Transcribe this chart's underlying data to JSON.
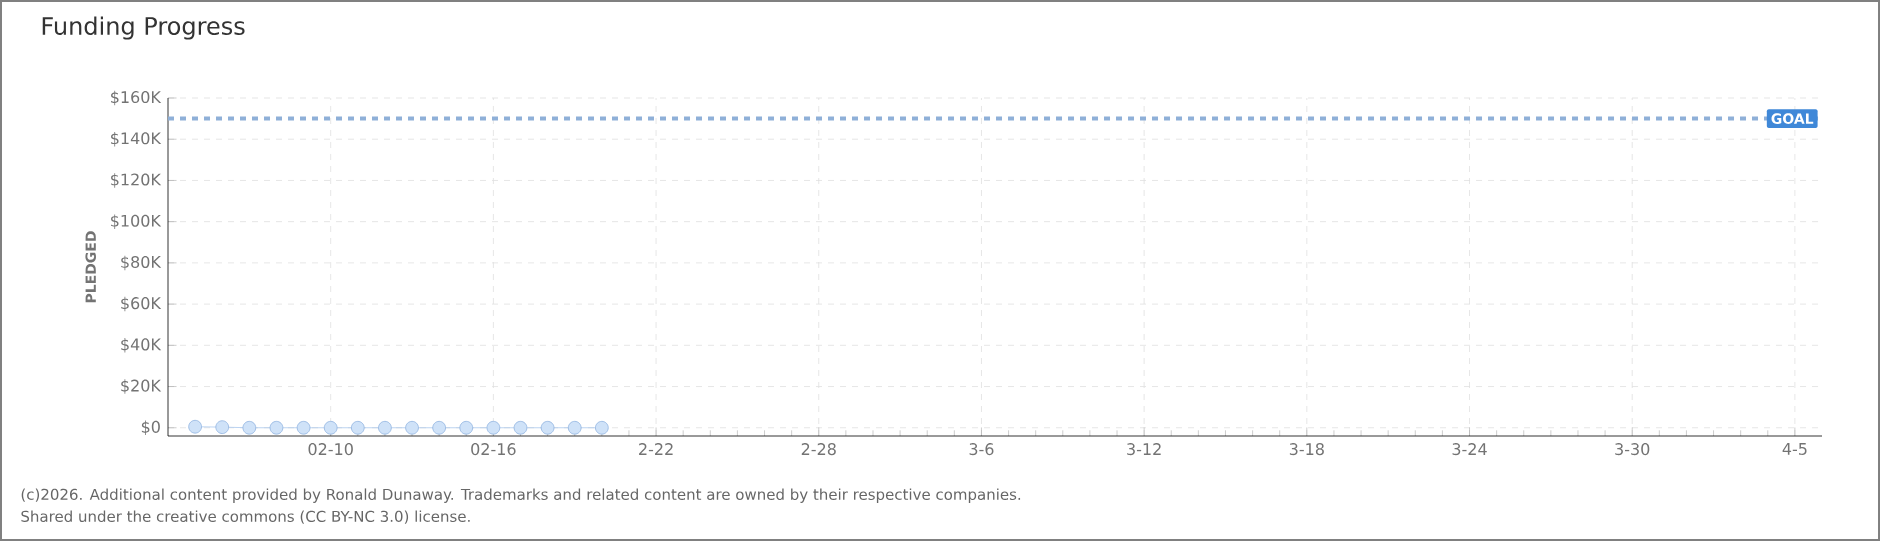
{
  "chart_data": {
    "type": "line",
    "title": "Funding Progress",
    "ylabel": "PLEDGED",
    "x": [
      "2026-02-05",
      "2026-02-06",
      "2026-02-07",
      "2026-02-08",
      "2026-02-09",
      "2026-02-10",
      "2026-02-11",
      "2026-02-12",
      "2026-02-13",
      "2026-02-14",
      "2026-02-15",
      "2026-02-16",
      "2026-02-17",
      "2026-02-18",
      "2026-02-19",
      "2026-02-20"
    ],
    "series": [
      {
        "color": "#a9c8ee",
        "values": [
          500,
          300,
          0,
          0,
          0,
          0,
          0,
          0,
          0,
          0,
          0,
          0,
          0,
          0,
          0,
          0
        ]
      }
    ],
    "marker": "circle",
    "line_style": "solid",
    "grid": true,
    "xlim": [
      "2026-02-04",
      "2026-04-06"
    ],
    "xticks": [
      {
        "value": "2026-02-10",
        "label": "02-10"
      },
      {
        "value": "2026-02-16",
        "label": "02-16"
      },
      {
        "value": "2026-02-22",
        "label": "2-22"
      },
      {
        "value": "2026-02-28",
        "label": "2-28"
      },
      {
        "value": "2026-03-06",
        "label": "3-6"
      },
      {
        "value": "2026-03-12",
        "label": "3-12"
      },
      {
        "value": "2026-03-18",
        "label": "3-18"
      },
      {
        "value": "2026-03-24",
        "label": "3-24"
      },
      {
        "value": "2026-03-30",
        "label": "3-30"
      },
      {
        "value": "2026-04-05",
        "label": "4-5"
      }
    ],
    "ylim": [
      -4000,
      160000
    ],
    "yticks": [
      {
        "value": 0,
        "label": "$0"
      },
      {
        "value": 20000,
        "label": "$20K"
      },
      {
        "value": 40000,
        "label": "$40K"
      },
      {
        "value": 60000,
        "label": "$60K"
      },
      {
        "value": 80000,
        "label": "$80K"
      },
      {
        "value": 100000,
        "label": "$100K"
      },
      {
        "value": 120000,
        "label": "$120K"
      },
      {
        "value": 140000,
        "label": "$140K"
      },
      {
        "value": 160000,
        "label": "$160K"
      }
    ],
    "ref_lines": [
      {
        "axis": "y",
        "value": 150000,
        "label": "GOAL",
        "color": "#8fb0d8",
        "line_style": "dashed"
      }
    ],
    "annotations": [
      "(c)2026. Additional content provided by Ronald Dunaway. Trademarks and related content are owned by their respective companies.",
      "Shared under the creative commons (CC BY-NC 3.0) license."
    ]
  }
}
